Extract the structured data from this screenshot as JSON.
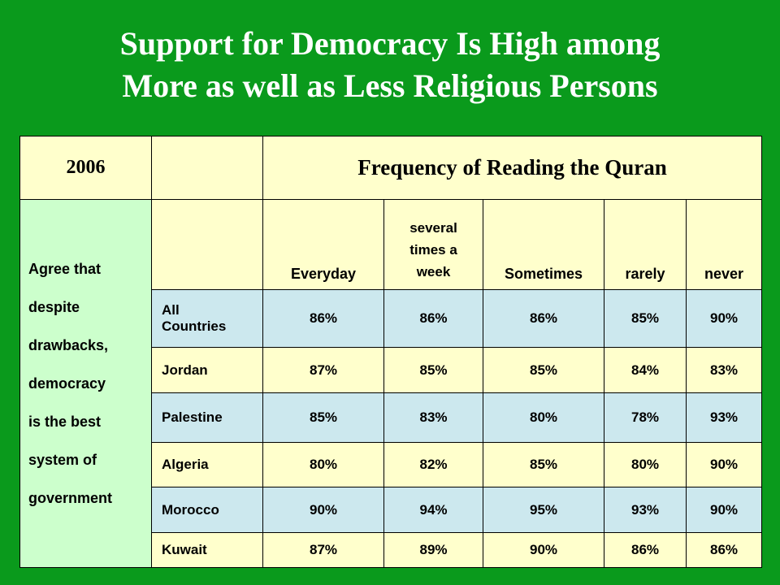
{
  "title": {
    "line1": "Support for Democracy Is High among",
    "line2": "More as well as Less Religious Persons"
  },
  "table": {
    "year": "2006",
    "group_header": "Frequency of Reading the Quran",
    "row_label_lines": [
      "Agree that",
      "despite",
      "drawbacks,",
      "democracy",
      "is the best",
      "system of",
      "government"
    ],
    "columns": [
      {
        "label": "Everyday"
      },
      {
        "label_lines": [
          "several",
          "times a",
          "week"
        ]
      },
      {
        "label": "Sometimes"
      },
      {
        "label": "rarely"
      },
      {
        "label": "never"
      }
    ],
    "rows": [
      {
        "country_lines": [
          "All",
          "Countries"
        ],
        "values": [
          "86%",
          "86%",
          "86%",
          "85%",
          "90%"
        ]
      },
      {
        "country": "Jordan",
        "values": [
          "87%",
          "85%",
          "85%",
          "84%",
          "83%"
        ]
      },
      {
        "country": "Palestine",
        "values": [
          "85%",
          "83%",
          "80%",
          "78%",
          "93%"
        ]
      },
      {
        "country": "Algeria",
        "values": [
          "80%",
          "82%",
          "85%",
          "80%",
          "90%"
        ]
      },
      {
        "country": "Morocco",
        "values": [
          "90%",
          "94%",
          "95%",
          "93%",
          "90%"
        ]
      },
      {
        "country": "Kuwait",
        "values": [
          "87%",
          "89%",
          "90%",
          "86%",
          "86%"
        ]
      }
    ]
  },
  "colors": {
    "background": "#0a9a1c",
    "header_fill": "#ffffcc",
    "data_fill_blue": "#cce8ee",
    "row_label_fill": "#ccffcc"
  }
}
